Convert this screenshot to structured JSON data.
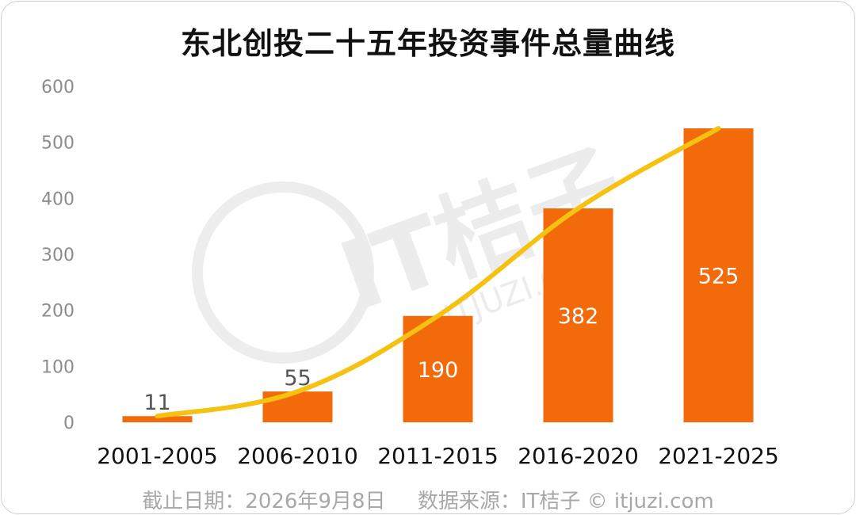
{
  "title": "东北创投二十五年投资事件总量曲线",
  "footer": {
    "date_text": "截止日期：2026年9月8日",
    "source_text": "数据来源：IT桔子 © itjuzi.com"
  },
  "watermark": {
    "text": "IT桔子",
    "subtext": "ITJUZI.COM"
  },
  "colors": {
    "bar": "#F26A0A",
    "line": "#F5C211",
    "axis_text": "#8c8c8c",
    "category_text": "#111111",
    "outside_label": "#555555",
    "inside_label": "#ffffff"
  },
  "chart_data": {
    "type": "bar",
    "categories": [
      "2001-2005",
      "2006-2010",
      "2011-2015",
      "2016-2020",
      "2021-2025"
    ],
    "values": [
      11,
      55,
      190,
      382,
      525
    ],
    "line_overlay": [
      11,
      55,
      190,
      382,
      525
    ],
    "title": "东北创投二十五年投资事件总量曲线",
    "xlabel": "",
    "ylabel": "",
    "ylim": [
      0,
      600
    ],
    "yticks": [
      0,
      100,
      200,
      300,
      400,
      500,
      600
    ],
    "grid": false,
    "legend": "none"
  }
}
